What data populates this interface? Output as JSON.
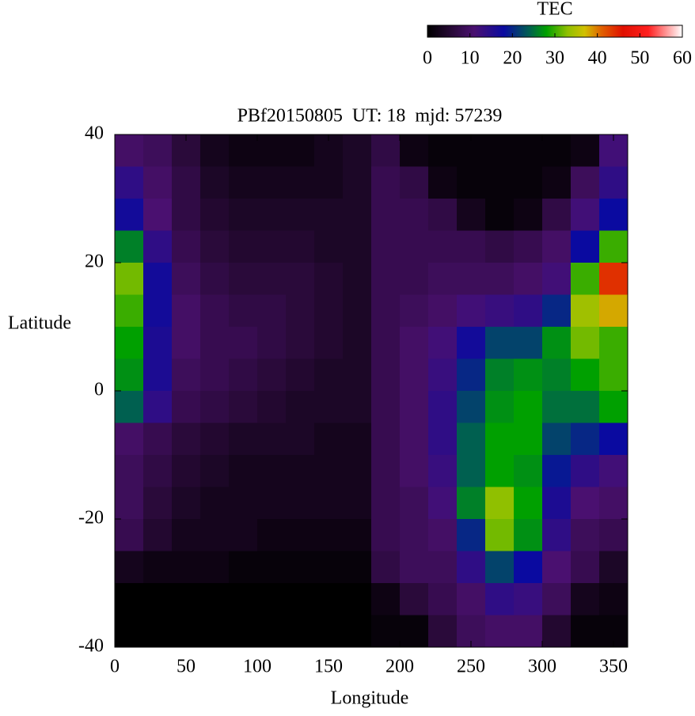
{
  "chart_data": {
    "type": "heatmap",
    "title": "PBf20150805  UT: 18  mjd: 57239",
    "x_label": "Longitude",
    "y_label": "Latitude",
    "colorbar_label": "TEC",
    "x": [
      10,
      30,
      50,
      70,
      90,
      110,
      130,
      150,
      170,
      190,
      210,
      230,
      250,
      270,
      290,
      310,
      330,
      350
    ],
    "y": [
      37.5,
      32.5,
      27.5,
      22.5,
      17.5,
      12.5,
      7.5,
      2.5,
      -2.5,
      -7.5,
      -12.5,
      -17.5,
      -22.5,
      -27.5,
      -32.5,
      -37.5
    ],
    "values": [
      [
        10,
        9,
        6,
        3,
        2,
        2,
        2,
        3,
        4,
        7,
        2,
        1,
        1,
        1,
        1,
        1,
        2,
        12
      ],
      [
        14,
        10,
        7,
        4,
        3,
        3,
        3,
        3,
        4,
        8,
        7,
        2,
        1,
        1,
        1,
        2,
        9,
        14
      ],
      [
        17,
        11,
        7,
        5,
        4,
        4,
        4,
        4,
        4,
        8,
        8,
        7,
        3,
        1,
        2,
        7,
        12,
        18
      ],
      [
        26,
        14,
        8,
        6,
        5,
        5,
        5,
        4,
        4,
        8,
        8,
        8,
        8,
        7,
        8,
        10,
        18,
        30
      ],
      [
        32,
        17,
        9,
        7,
        6,
        6,
        6,
        5,
        4,
        8,
        8,
        9,
        9,
        9,
        10,
        12,
        30,
        44
      ],
      [
        30,
        17,
        10,
        8,
        7,
        7,
        6,
        5,
        4,
        8,
        9,
        10,
        12,
        13,
        14,
        20,
        34,
        38
      ],
      [
        28,
        16,
        10,
        8,
        8,
        7,
        6,
        5,
        4,
        8,
        10,
        12,
        17,
        22,
        22,
        27,
        32,
        30
      ],
      [
        27,
        16,
        9,
        8,
        7,
        6,
        5,
        4,
        4,
        8,
        10,
        13,
        20,
        26,
        27,
        26,
        28,
        30
      ],
      [
        24,
        14,
        8,
        7,
        6,
        5,
        4,
        4,
        4,
        8,
        10,
        14,
        22,
        27,
        28,
        25,
        25,
        28
      ],
      [
        10,
        8,
        6,
        5,
        4,
        4,
        4,
        3,
        3,
        8,
        10,
        14,
        24,
        28,
        28,
        22,
        20,
        18
      ],
      [
        9,
        7,
        5,
        4,
        3,
        3,
        3,
        3,
        3,
        8,
        10,
        13,
        24,
        28,
        27,
        19,
        14,
        12
      ],
      [
        9,
        6,
        4,
        3,
        3,
        3,
        3,
        3,
        3,
        8,
        9,
        12,
        26,
        33,
        28,
        16,
        11,
        10
      ],
      [
        8,
        5,
        3,
        3,
        3,
        2,
        2,
        2,
        2,
        8,
        9,
        10,
        20,
        32,
        27,
        14,
        9,
        8
      ],
      [
        3,
        2,
        2,
        2,
        1,
        1,
        1,
        1,
        1,
        7,
        9,
        9,
        14,
        22,
        18,
        11,
        8,
        4
      ],
      [
        0,
        0,
        0,
        0,
        0,
        0,
        0,
        0,
        0,
        2,
        6,
        8,
        10,
        14,
        13,
        9,
        3,
        2
      ],
      [
        0,
        0,
        0,
        0,
        0,
        0,
        0,
        0,
        0,
        1,
        1,
        6,
        9,
        10,
        10,
        5,
        1,
        1
      ]
    ],
    "xlim": [
      0,
      360
    ],
    "xticks": [
      0,
      50,
      100,
      150,
      200,
      250,
      300,
      350
    ],
    "ylim": [
      -40,
      40
    ],
    "yticks": [
      -40,
      -20,
      0,
      20,
      40
    ],
    "clim": [
      0,
      60
    ],
    "cticks": [
      0,
      10,
      20,
      30,
      40,
      50,
      60
    ],
    "colormap": [
      {
        "value": 0,
        "color": "#000000"
      },
      {
        "value": 6,
        "color": "#2a0a3a"
      },
      {
        "value": 11,
        "color": "#4a1070"
      },
      {
        "value": 18,
        "color": "#0a0aa0"
      },
      {
        "value": 24,
        "color": "#006050"
      },
      {
        "value": 28,
        "color": "#00a000"
      },
      {
        "value": 33,
        "color": "#90c000"
      },
      {
        "value": 37,
        "color": "#d0c000"
      },
      {
        "value": 41,
        "color": "#e06000"
      },
      {
        "value": 46,
        "color": "#e01000"
      },
      {
        "value": 52,
        "color": "#ff2020"
      },
      {
        "value": 60,
        "color": "#ffffff"
      }
    ]
  }
}
